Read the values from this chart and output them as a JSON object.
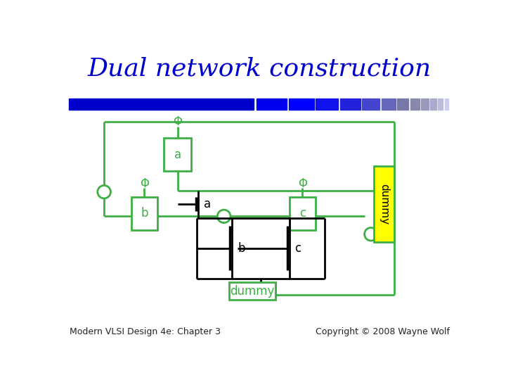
{
  "title": "Dual network construction",
  "title_color": "#0000CC",
  "title_fontsize": 26,
  "bg_color": "#FFFFFF",
  "footer_left": "Modern VLSI Design 4e: Chapter 3",
  "footer_right": "Copyright © 2008 Wayne Wolf",
  "footer_fontsize": 9,
  "green_color": "#3CB043",
  "black_color": "#000000",
  "yellow_color": "#FFFF00",
  "bar_data": [
    [
      10,
      340,
      "#0000CC"
    ],
    [
      355,
      55,
      "#0000EE"
    ],
    [
      414,
      46,
      "#0000FF"
    ],
    [
      463,
      42,
      "#1111EE"
    ],
    [
      508,
      38,
      "#2222DD"
    ],
    [
      549,
      32,
      "#4444CC"
    ],
    [
      584,
      26,
      "#6666BB"
    ],
    [
      613,
      21,
      "#7777AA"
    ],
    [
      637,
      17,
      "#8888AA"
    ],
    [
      657,
      14,
      "#9999BB"
    ],
    [
      674,
      11,
      "#AAAACC"
    ],
    [
      688,
      9,
      "#BBBBDD"
    ],
    [
      700,
      7,
      "#CCCCEE"
    ]
  ]
}
